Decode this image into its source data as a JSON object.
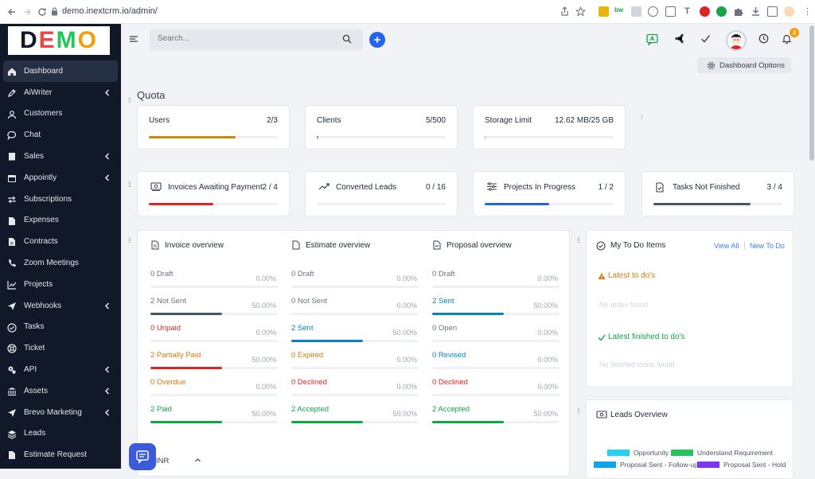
{
  "browser": {
    "url": "demo.inextcrm.io/admin/"
  },
  "brand": {
    "logo_text": "DEMO"
  },
  "sidebar": {
    "items": [
      {
        "label": "Dashboard",
        "icon": "home-icon",
        "chevron": false,
        "active": true
      },
      {
        "label": "AiWriter",
        "icon": "pen-icon",
        "chevron": true
      },
      {
        "label": "Customers",
        "icon": "users-icon",
        "chevron": false
      },
      {
        "label": "Chat",
        "icon": "chat-icon",
        "chevron": false
      },
      {
        "label": "Sales",
        "icon": "receipt-icon",
        "chevron": true
      },
      {
        "label": "Appointly",
        "icon": "calendar-icon",
        "chevron": true
      },
      {
        "label": "Subscriptions",
        "icon": "repeat-icon",
        "chevron": false
      },
      {
        "label": "Expenses",
        "icon": "file-icon",
        "chevron": false
      },
      {
        "label": "Contracts",
        "icon": "contract-icon",
        "chevron": false
      },
      {
        "label": "Zoom Meetings",
        "icon": "phone-icon",
        "chevron": false
      },
      {
        "label": "Projects",
        "icon": "chart-icon",
        "chevron": false
      },
      {
        "label": "Webhooks",
        "icon": "send-icon",
        "chevron": true
      },
      {
        "label": "Tasks",
        "icon": "check-circle-icon",
        "chevron": false
      },
      {
        "label": "Ticket",
        "icon": "lifebuoy-icon",
        "chevron": false
      },
      {
        "label": "API",
        "icon": "cogs-icon",
        "chevron": true
      },
      {
        "label": "Assets",
        "icon": "bank-icon",
        "chevron": true
      },
      {
        "label": "Brevo Marketing",
        "icon": "send-icon",
        "chevron": true
      },
      {
        "label": "Leads",
        "icon": "stack-icon",
        "chevron": false
      },
      {
        "label": "Estimate Request",
        "icon": "file-icon",
        "chevron": false
      }
    ]
  },
  "header": {
    "search_placeholder": "Search...",
    "notification_count": "4",
    "dashboard_options": "Dashboard Options"
  },
  "quota": {
    "title": "Quota",
    "cards": [
      {
        "label": "Users",
        "value": "2/3",
        "progress": 0.67,
        "color": "#ca8a04"
      },
      {
        "label": "Clients",
        "value": "5/500",
        "progress": 0.01,
        "color": "#22c55e"
      },
      {
        "label": "Storage Limit",
        "value": "12.62 MB/25 GB",
        "progress": 0.0,
        "color": "#9ca3af"
      }
    ]
  },
  "stats": [
    {
      "label": "Invoices Awaiting Payment",
      "value": "2 / 4",
      "progress": 0.5,
      "color": "#dc2626",
      "icon": "money-icon"
    },
    {
      "label": "Converted Leads",
      "value": "0 / 16",
      "progress": 0.0,
      "color": "#9ca3af",
      "icon": "trend-icon"
    },
    {
      "label": "Projects In Progress",
      "value": "1 / 2",
      "progress": 0.5,
      "color": "#2563eb",
      "icon": "sliders-icon"
    },
    {
      "label": "Tasks Not Finished",
      "value": "3 / 4",
      "progress": 0.75,
      "color": "#475569",
      "icon": "task-icon"
    }
  ],
  "overview": {
    "columns": [
      {
        "title": "Invoice overview",
        "rows": [
          {
            "label": "0 Draft",
            "percent": "0.00%",
            "progress": 0,
            "color": "#6b7280",
            "bar": "#9ca3af"
          },
          {
            "label": "2 Not Sent",
            "percent": "50.00%",
            "progress": 0.5,
            "color": "#6b7280",
            "bar": "#475569"
          },
          {
            "label": "0 Unpaid",
            "percent": "0.00%",
            "progress": 0,
            "color": "#dc2626",
            "bar": "#dc2626"
          },
          {
            "label": "2 Partially Paid",
            "percent": "50.00%",
            "progress": 0.5,
            "color": "#d97706",
            "bar": "#dc2626"
          },
          {
            "label": "0 Overdue",
            "percent": "0.00%",
            "progress": 0,
            "color": "#d97706",
            "bar": "#d97706"
          },
          {
            "label": "2 Paid",
            "percent": "50.00%",
            "progress": 0.5,
            "color": "#16a34a",
            "bar": "#16a34a"
          }
        ]
      },
      {
        "title": "Estimate overview",
        "rows": [
          {
            "label": "0 Draft",
            "percent": "0.00%",
            "progress": 0,
            "color": "#6b7280",
            "bar": "#9ca3af"
          },
          {
            "label": "0 Not Sent",
            "percent": "0.00%",
            "progress": 0,
            "color": "#6b7280",
            "bar": "#475569"
          },
          {
            "label": "2 Sent",
            "percent": "50.00%",
            "progress": 0.5,
            "color": "#0284c7",
            "bar": "#0284c7"
          },
          {
            "label": "0 Expired",
            "percent": "0.00%",
            "progress": 0,
            "color": "#d97706",
            "bar": "#d97706"
          },
          {
            "label": "0 Declined",
            "percent": "0.00%",
            "progress": 0,
            "color": "#dc2626",
            "bar": "#dc2626"
          },
          {
            "label": "2 Accepted",
            "percent": "50.00%",
            "progress": 0.5,
            "color": "#16a34a",
            "bar": "#16a34a"
          }
        ]
      },
      {
        "title": "Proposal overview",
        "rows": [
          {
            "label": "0 Draft",
            "percent": "0.00%",
            "progress": 0,
            "color": "#6b7280",
            "bar": "#9ca3af"
          },
          {
            "label": "2 Sent",
            "percent": "50.00%",
            "progress": 0.5,
            "color": "#0284c7",
            "bar": "#0284c7"
          },
          {
            "label": "0 Open",
            "percent": "0.00%",
            "progress": 0,
            "color": "#6b7280",
            "bar": "#475569"
          },
          {
            "label": "0 Revised",
            "percent": "0.00%",
            "progress": 0,
            "color": "#0284c7",
            "bar": "#0284c7"
          },
          {
            "label": "0 Declined",
            "percent": "0.00%",
            "progress": 0,
            "color": "#dc2626",
            "bar": "#dc2626"
          },
          {
            "label": "2 Accepted",
            "percent": "50.00%",
            "progress": 0.5,
            "color": "#16a34a",
            "bar": "#16a34a"
          }
        ]
      }
    ],
    "currency": "INR"
  },
  "todo": {
    "title": "My To Do Items",
    "view_all": "View All",
    "new_todo": "New To Do",
    "latest_title": "Latest to do's",
    "latest_empty": "No todos found",
    "finished_title": "Latest finished to do's",
    "finished_empty": "No finished todos found"
  },
  "leads": {
    "title": "Leads Overview",
    "legend": [
      {
        "name": "Opportunity",
        "color": "#22d3ee"
      },
      {
        "name": "Understand Requirement",
        "color": "#22c55e"
      },
      {
        "name": "Proposal Sent - Follow-up",
        "color": "#0ea5e9"
      },
      {
        "name": "Proposal Sent - Hold",
        "color": "#7c3aed"
      }
    ]
  }
}
